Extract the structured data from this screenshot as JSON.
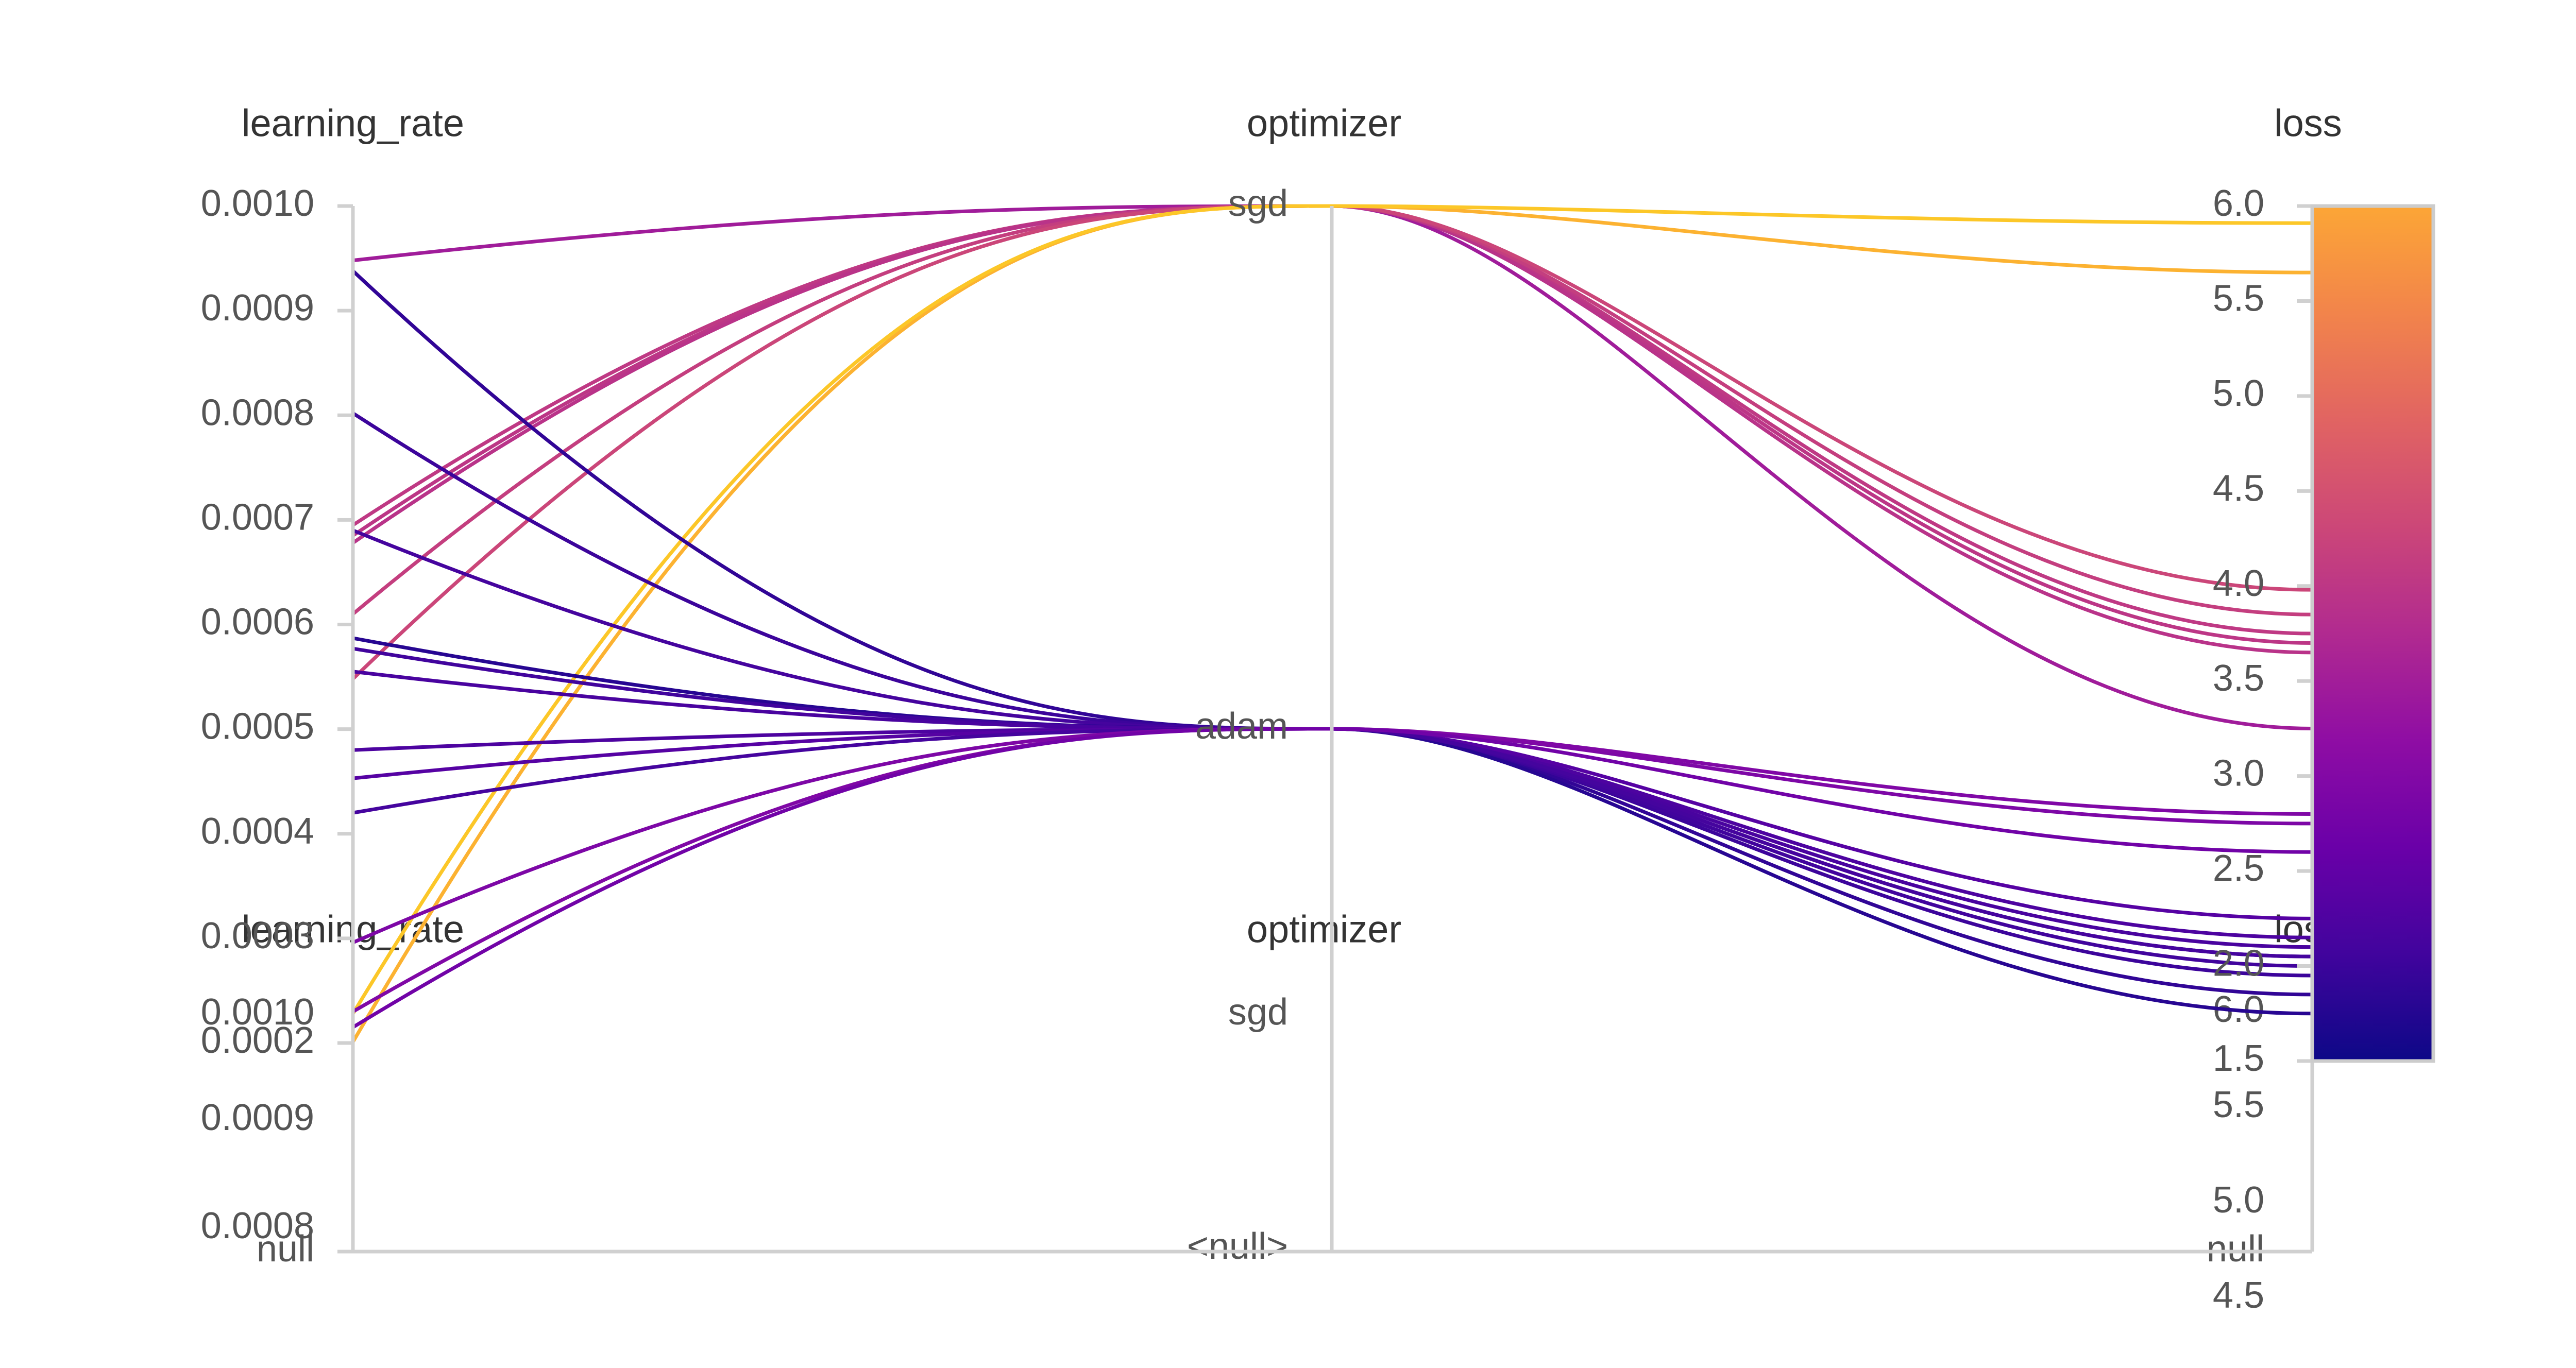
{
  "chart_data": {
    "type": "parallel_coordinates",
    "axes": [
      {
        "name": "learning_rate",
        "label": "learning_rate",
        "ticks": [
          "0.0010",
          "0.0009",
          "0.0008",
          "0.0007",
          "0.0006",
          "0.0005",
          "0.0004",
          "0.0003",
          "0.0002"
        ],
        "range": [
          0.0002,
          0.001
        ]
      },
      {
        "name": "optimizer",
        "label": "optimizer",
        "categories": [
          "sgd",
          "adam"
        ]
      },
      {
        "name": "loss",
        "label": "loss",
        "ticks": [
          "6.0",
          "5.5",
          "5.0",
          "4.5",
          "4.0",
          "3.5",
          "3.0",
          "2.5",
          "2.0",
          "1.5"
        ],
        "range": [
          1.5,
          6.0
        ]
      }
    ],
    "colorbar": {
      "range": [
        1.5,
        6.0
      ],
      "colormap": "plasma",
      "ticks": [
        "6.0",
        "5.5",
        "5.0",
        "4.5",
        "4.0",
        "3.5",
        "3.0",
        "2.5",
        "2.0",
        "1.5"
      ]
    },
    "runs": [
      {
        "learning_rate": 0.000948,
        "optimizer": "sgd",
        "loss": 3.25
      },
      {
        "learning_rate": 0.000695,
        "optimizer": "sgd",
        "loss": 3.75
      },
      {
        "learning_rate": 0.000685,
        "optimizer": "sgd",
        "loss": 3.7
      },
      {
        "learning_rate": 0.000678,
        "optimizer": "sgd",
        "loss": 3.65
      },
      {
        "learning_rate": 0.00061,
        "optimizer": "sgd",
        "loss": 3.85
      },
      {
        "learning_rate": 0.000548,
        "optimizer": "sgd",
        "loss": 3.98
      },
      {
        "learning_rate": 0.000201,
        "optimizer": "sgd",
        "loss": 5.65
      },
      {
        "learning_rate": 0.000228,
        "optimizer": "sgd",
        "loss": 5.91
      },
      {
        "learning_rate": 0.000938,
        "optimizer": "adam",
        "loss": 1.85
      },
      {
        "learning_rate": 0.000802,
        "optimizer": "adam",
        "loss": 1.95
      },
      {
        "learning_rate": 0.00069,
        "optimizer": "adam",
        "loss": 2.05
      },
      {
        "learning_rate": 0.000587,
        "optimizer": "adam",
        "loss": 1.75
      },
      {
        "learning_rate": 0.000577,
        "optimizer": "adam",
        "loss": 2.0
      },
      {
        "learning_rate": 0.000555,
        "optimizer": "adam",
        "loss": 2.1
      },
      {
        "learning_rate": 0.00048,
        "optimizer": "adam",
        "loss": 2.15
      },
      {
        "learning_rate": 0.000453,
        "optimizer": "adam",
        "loss": 2.25
      },
      {
        "learning_rate": 0.00042,
        "optimizer": "adam",
        "loss": 2.05
      },
      {
        "learning_rate": 0.000296,
        "optimizer": "adam",
        "loss": 2.75
      },
      {
        "learning_rate": 0.00023,
        "optimizer": "adam",
        "loss": 2.8
      },
      {
        "learning_rate": 0.000215,
        "optimizer": "adam",
        "loss": 2.6
      }
    ],
    "ghost_overlay": {
      "titles": [
        "learning_rate",
        "optimizer",
        "loss"
      ],
      "lr_ticks": [
        "0.0010",
        "0.0009",
        "0.0008"
      ],
      "lr_null": "null",
      "opt_categories": [
        "sgd",
        "<null>"
      ],
      "loss_ticks": [
        "6.0",
        "5.5",
        "5.0",
        "4.5"
      ],
      "loss_null": "null"
    }
  }
}
